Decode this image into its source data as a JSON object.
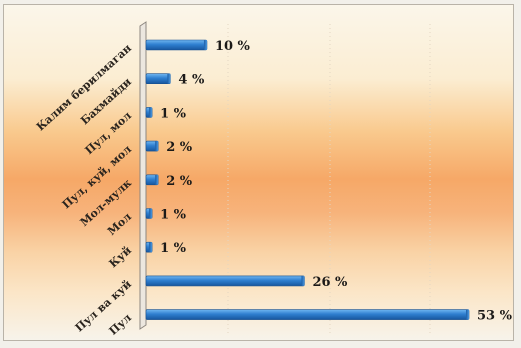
{
  "chart_data": {
    "type": "bar",
    "orientation": "horizontal",
    "categories": [
      "Калим берилмаган",
      "Бахмайди",
      "Пул, мол",
      "Пул, куй, мол",
      "Мол-мулк",
      "Мол",
      "Куй",
      "Пул ва куй",
      "Пул"
    ],
    "values": [
      10,
      4,
      1,
      2,
      2,
      1,
      1,
      26,
      53
    ],
    "value_labels": [
      "10 %",
      "4 %",
      "1 %",
      "2 %",
      "2 %",
      "1 %",
      "1 %",
      "26 %",
      "53 %"
    ],
    "unit": "%",
    "xlim": [
      0,
      53
    ],
    "grid": true,
    "bar_color": "#2f7fd0"
  }
}
